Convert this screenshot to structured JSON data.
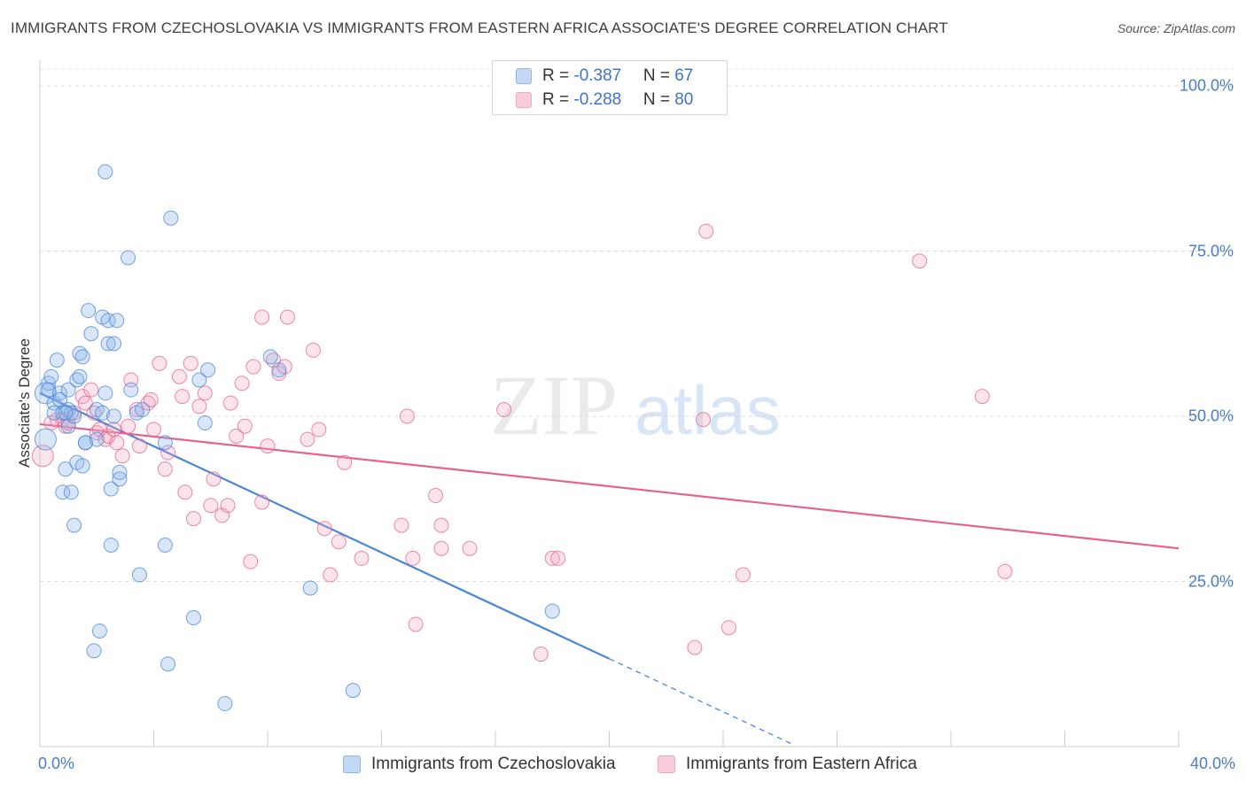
{
  "title": "IMMIGRANTS FROM CZECHOSLOVAKIA VS IMMIGRANTS FROM EASTERN AFRICA ASSOCIATE'S DEGREE CORRELATION CHART",
  "source": "Source: ZipAtlas.com",
  "watermark": {
    "zip": "ZIP",
    "atlas": "atlas"
  },
  "stats": [
    {
      "r_label": "R = ",
      "r_value": "-0.387",
      "n_label": "N = ",
      "n_value": "67",
      "color": "#8fb6ea"
    },
    {
      "r_label": "R = ",
      "r_value": "-0.288",
      "n_label": "N = ",
      "n_value": "80",
      "color": "#f4a6be"
    }
  ],
  "legend": [
    {
      "label": "Immigrants from Czechoslovakia",
      "color": "#8fb6ea"
    },
    {
      "label": "Immigrants from Eastern Africa",
      "color": "#f4a6be"
    }
  ],
  "chart_data": {
    "type": "scatter",
    "ylabel": "Associate's Degree",
    "xlim": [
      0,
      40
    ],
    "ylim": [
      0,
      100
    ],
    "x_tick_labels": [
      {
        "value": 0,
        "label": "0.0%"
      },
      {
        "value": 40,
        "label": "40.0%"
      }
    ],
    "y_tick_labels": [
      {
        "value": 100,
        "label": "100.0%"
      },
      {
        "value": 75,
        "label": "75.0%"
      },
      {
        "value": 50,
        "label": "50.0%"
      },
      {
        "value": 25,
        "label": "25.0%"
      }
    ],
    "grid": true,
    "series": [
      {
        "name": "Immigrants from Czechoslovakia",
        "color": "#4a86d8",
        "fill": "rgba(143,182,234,0.35)",
        "trend": {
          "x0": 0,
          "y0": 53.5,
          "x1": 20,
          "y1": 13.3,
          "dash_to_x": 26.5
        },
        "points": [
          [
            0.2,
            53.5
          ],
          [
            0.2,
            46.5
          ],
          [
            0.3,
            55.0
          ],
          [
            0.3,
            54.0
          ],
          [
            0.4,
            56.0
          ],
          [
            0.5,
            52.0
          ],
          [
            0.5,
            50.5
          ],
          [
            0.6,
            58.5
          ],
          [
            0.7,
            53.5
          ],
          [
            0.7,
            52.5
          ],
          [
            0.8,
            38.5
          ],
          [
            0.8,
            50.5
          ],
          [
            0.9,
            42.0
          ],
          [
            1.0,
            51.0
          ],
          [
            1.0,
            48.5
          ],
          [
            1.0,
            54.0
          ],
          [
            1.1,
            50.5
          ],
          [
            1.1,
            38.5
          ],
          [
            1.2,
            33.5
          ],
          [
            1.2,
            50.0
          ],
          [
            1.3,
            43.0
          ],
          [
            1.3,
            55.5
          ],
          [
            1.4,
            56.0
          ],
          [
            1.4,
            59.5
          ],
          [
            1.5,
            59.0
          ],
          [
            1.5,
            42.5
          ],
          [
            1.6,
            46.0
          ],
          [
            1.7,
            66.0
          ],
          [
            1.8,
            62.5
          ],
          [
            1.9,
            14.5
          ],
          [
            2.0,
            46.5
          ],
          [
            2.0,
            51.0
          ],
          [
            2.1,
            17.5
          ],
          [
            2.2,
            65.0
          ],
          [
            2.2,
            50.5
          ],
          [
            2.3,
            53.5
          ],
          [
            2.4,
            61.0
          ],
          [
            2.4,
            64.5
          ],
          [
            2.5,
            30.5
          ],
          [
            2.5,
            39.0
          ],
          [
            2.6,
            61.0
          ],
          [
            2.6,
            50.0
          ],
          [
            2.7,
            64.5
          ],
          [
            2.8,
            40.5
          ],
          [
            2.8,
            41.5
          ],
          [
            2.3,
            87.0
          ],
          [
            3.1,
            74.0
          ],
          [
            3.2,
            54.0
          ],
          [
            3.4,
            50.5
          ],
          [
            3.5,
            26.0
          ],
          [
            3.6,
            51.0
          ],
          [
            4.4,
            46.0
          ],
          [
            4.4,
            30.5
          ],
          [
            4.5,
            12.5
          ],
          [
            4.6,
            80.0
          ],
          [
            5.4,
            19.5
          ],
          [
            5.6,
            55.5
          ],
          [
            5.8,
            49.0
          ],
          [
            5.9,
            57.0
          ],
          [
            6.5,
            6.5
          ],
          [
            8.1,
            59.0
          ],
          [
            8.4,
            57.0
          ],
          [
            9.5,
            24.0
          ],
          [
            11.0,
            8.5
          ],
          [
            18.0,
            20.5
          ],
          [
            1.6,
            46.0
          ],
          [
            0.9,
            50.5
          ]
        ]
      },
      {
        "name": "Immigrants from Eastern Africa",
        "color": "#e3638f",
        "fill": "rgba(244,166,190,0.30)",
        "trend": {
          "x0": 0,
          "y0": 48.8,
          "x1": 40,
          "y1": 30.0
        },
        "points": [
          [
            0.1,
            44.0
          ],
          [
            0.6,
            49.5
          ],
          [
            0.8,
            49.5
          ],
          [
            0.9,
            48.5
          ],
          [
            1.2,
            50.5
          ],
          [
            1.5,
            53.0
          ],
          [
            1.6,
            52.0
          ],
          [
            1.8,
            54.0
          ],
          [
            1.9,
            50.5
          ],
          [
            2.0,
            47.5
          ],
          [
            2.1,
            48.0
          ],
          [
            2.3,
            46.5
          ],
          [
            2.4,
            47.0
          ],
          [
            2.6,
            48.0
          ],
          [
            2.7,
            46.0
          ],
          [
            2.9,
            44.0
          ],
          [
            3.1,
            48.5
          ],
          [
            3.2,
            55.5
          ],
          [
            3.4,
            51.0
          ],
          [
            3.5,
            45.5
          ],
          [
            3.8,
            52.0
          ],
          [
            4.0,
            48.0
          ],
          [
            4.2,
            58.0
          ],
          [
            4.4,
            42.0
          ],
          [
            4.5,
            44.5
          ],
          [
            4.9,
            56.0
          ],
          [
            5.0,
            53.0
          ],
          [
            5.1,
            38.5
          ],
          [
            5.3,
            58.0
          ],
          [
            5.4,
            34.5
          ],
          [
            5.6,
            51.5
          ],
          [
            5.8,
            53.5
          ],
          [
            6.0,
            36.5
          ],
          [
            6.1,
            40.5
          ],
          [
            6.4,
            35.0
          ],
          [
            6.6,
            36.5
          ],
          [
            6.7,
            52.0
          ],
          [
            6.9,
            47.0
          ],
          [
            7.1,
            55.0
          ],
          [
            7.2,
            48.5
          ],
          [
            7.4,
            28.0
          ],
          [
            7.5,
            57.5
          ],
          [
            7.8,
            37.0
          ],
          [
            7.8,
            65.0
          ],
          [
            8.0,
            45.5
          ],
          [
            8.2,
            58.5
          ],
          [
            8.4,
            56.5
          ],
          [
            8.6,
            57.5
          ],
          [
            8.7,
            65.0
          ],
          [
            9.4,
            46.5
          ],
          [
            9.6,
            60.0
          ],
          [
            9.8,
            48.0
          ],
          [
            10.0,
            33.0
          ],
          [
            10.2,
            26.0
          ],
          [
            10.5,
            31.0
          ],
          [
            10.7,
            43.0
          ],
          [
            11.3,
            28.5
          ],
          [
            12.7,
            33.5
          ],
          [
            12.9,
            50.0
          ],
          [
            13.1,
            28.5
          ],
          [
            13.2,
            18.5
          ],
          [
            13.9,
            38.0
          ],
          [
            14.1,
            30.0
          ],
          [
            14.1,
            33.5
          ],
          [
            15.1,
            30.0
          ],
          [
            16.3,
            51.0
          ],
          [
            17.6,
            14.0
          ],
          [
            18.0,
            28.5
          ],
          [
            18.2,
            28.5
          ],
          [
            23.0,
            15.0
          ],
          [
            23.3,
            49.5
          ],
          [
            23.4,
            78.0
          ],
          [
            24.2,
            18.0
          ],
          [
            24.7,
            26.0
          ],
          [
            30.9,
            73.5
          ],
          [
            33.1,
            53.0
          ],
          [
            33.9,
            26.5
          ],
          [
            0.4,
            49.0
          ],
          [
            1.0,
            49.0
          ],
          [
            3.9,
            52.5
          ]
        ]
      }
    ]
  }
}
